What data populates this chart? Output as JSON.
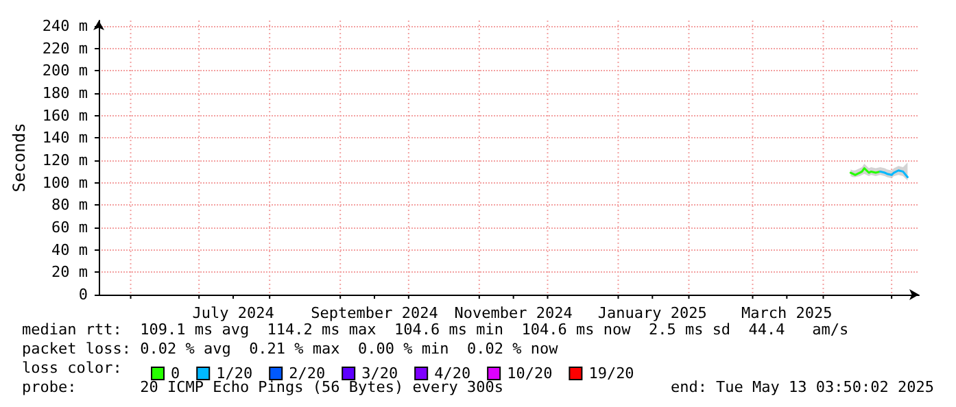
{
  "chart_data": {
    "type": "line",
    "ylabel": "Seconds",
    "legend_title": "loss color:",
    "x": [
      "2025-04-13",
      "2025-04-14",
      "2025-04-15",
      "2025-04-17",
      "2025-04-18",
      "2025-04-19",
      "2025-04-21",
      "2025-04-22",
      "2025-04-24",
      "2025-04-26",
      "2025-04-28",
      "2025-04-29",
      "2025-05-01",
      "2025-05-02",
      "2025-05-04",
      "2025-05-06",
      "2025-05-08"
    ],
    "series": [
      {
        "name": "0",
        "color": "#26ff00",
        "values": [
          109,
          108,
          107,
          109,
          110,
          113,
          109,
          110,
          109,
          110,
          null,
          null,
          null,
          null,
          null,
          null,
          null
        ],
        "lower": [
          106,
          105,
          105,
          106,
          107,
          108,
          106,
          107,
          106,
          107,
          106,
          105,
          104,
          106,
          107,
          106,
          102
        ],
        "upper": [
          112,
          111,
          111,
          113,
          114,
          117,
          113,
          114,
          113,
          114,
          113,
          112,
          111,
          113,
          115,
          114,
          118
        ]
      },
      {
        "name": "1/20",
        "color": "#00b8ff",
        "values": [
          null,
          null,
          null,
          null,
          null,
          null,
          null,
          null,
          null,
          110,
          109,
          108,
          107,
          109,
          111,
          110,
          105
        ]
      },
      {
        "name": "2/20",
        "color": "#0059ff",
        "values": [
          null,
          null,
          null,
          null,
          null,
          null,
          null,
          null,
          null,
          null,
          null,
          null,
          null,
          null,
          null,
          null,
          null
        ]
      },
      {
        "name": "3/20",
        "color": "#5e00ff",
        "values": [
          null,
          null,
          null,
          null,
          null,
          null,
          null,
          null,
          null,
          null,
          null,
          null,
          null,
          null,
          null,
          null,
          null
        ]
      },
      {
        "name": "4/20",
        "color": "#7e00ff",
        "values": [
          null,
          null,
          null,
          null,
          null,
          null,
          null,
          null,
          null,
          null,
          null,
          null,
          null,
          null,
          null,
          null,
          null
        ]
      },
      {
        "name": "10/20",
        "color": "#dd00ff",
        "values": [
          null,
          null,
          null,
          null,
          null,
          null,
          null,
          null,
          null,
          null,
          null,
          null,
          null,
          null,
          null,
          null,
          null
        ]
      },
      {
        "name": "19/20",
        "color": "#ff0000",
        "values": [
          null,
          null,
          null,
          null,
          null,
          null,
          null,
          null,
          null,
          null,
          null,
          null,
          null,
          null,
          null,
          null,
          null
        ]
      }
    ],
    "xlim": [
      "2024-05-18",
      "2025-05-13"
    ],
    "xticks": [
      {
        "value": "2024-06-01",
        "label": null
      },
      {
        "value": "2024-07-01",
        "label": null
      },
      {
        "value": "2024-07-16",
        "label": "July 2024"
      },
      {
        "value": "2024-08-01",
        "label": null
      },
      {
        "value": "2024-09-01",
        "label": null
      },
      {
        "value": "2024-09-16",
        "label": "September 2024"
      },
      {
        "value": "2024-10-01",
        "label": null
      },
      {
        "value": "2024-11-01",
        "label": null
      },
      {
        "value": "2024-11-16",
        "label": "November 2024"
      },
      {
        "value": "2024-12-01",
        "label": null
      },
      {
        "value": "2025-01-01",
        "label": null
      },
      {
        "value": "2025-01-16",
        "label": "January 2025"
      },
      {
        "value": "2025-02-01",
        "label": null
      },
      {
        "value": "2025-03-01",
        "label": null
      },
      {
        "value": "2025-03-16",
        "label": "March 2025"
      },
      {
        "value": "2025-04-01",
        "label": null
      },
      {
        "value": "2025-05-01",
        "label": null
      }
    ],
    "ylim": [
      0,
      245
    ],
    "yticks": [
      0,
      {
        "value": 20,
        "label": "20 m"
      },
      {
        "value": 40,
        "label": "40 m"
      },
      {
        "value": 60,
        "label": "60 m"
      },
      {
        "value": 80,
        "label": "80 m"
      },
      {
        "value": 100,
        "label": "100 m"
      },
      {
        "value": 120,
        "label": "120 m"
      },
      {
        "value": 140,
        "label": "140 m"
      },
      {
        "value": 160,
        "label": "160 m"
      },
      {
        "value": 180,
        "label": "180 m"
      },
      {
        "value": 200,
        "label": "200 m"
      },
      {
        "value": 220,
        "label": "220 m"
      },
      {
        "value": 240,
        "label": "240 m"
      }
    ],
    "grid": true,
    "legend": "bottom",
    "marker": "none",
    "line_style": "solid",
    "annotations": [
      "median rtt:  109.1 ms avg  114.2 ms max  104.6 ms min  104.6 ms now  2.5 ms sd  44.4   am/s",
      "packet loss: 0.02 % avg  0.21 % max  0.00 % min  0.02 % now",
      "probe:       20 ICMP Echo Pings (56 Bytes) every 300s",
      "end: Tue May 13 03:50:02 2025"
    ]
  }
}
